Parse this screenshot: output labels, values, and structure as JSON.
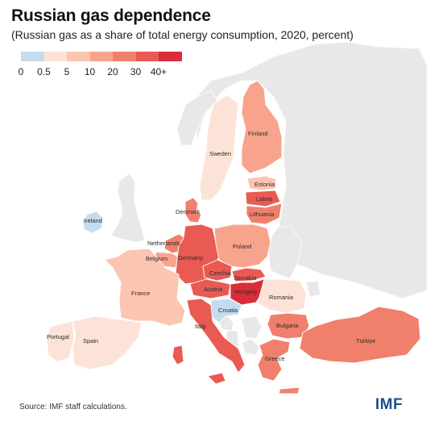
{
  "title": "Russian gas dependence",
  "subtitle": "(Russian gas as a share of total energy consumption, 2020, percent)",
  "legend": {
    "colors": [
      "#c6dcee",
      "#fde3d7",
      "#fcc5b1",
      "#f8a48d",
      "#f0806c",
      "#e85a52",
      "#d92e3a"
    ],
    "ticks": [
      "0",
      "0.5",
      "5",
      "10",
      "20",
      "30",
      "40+"
    ]
  },
  "countries": [
    {
      "name": "Finland",
      "color": "#f8a48d"
    },
    {
      "name": "Sweden",
      "color": "#fde3d7"
    },
    {
      "name": "Estonia",
      "color": "#fcc5b1"
    },
    {
      "name": "Latvia",
      "color": "#e85a52"
    },
    {
      "name": "Lithuania",
      "color": "#f0806c"
    },
    {
      "name": "Denmark",
      "color": "#f0806c"
    },
    {
      "name": "Ireland",
      "color": "#c6dcee"
    },
    {
      "name": "Netherlands",
      "color": "#f0806c"
    },
    {
      "name": "Belgium",
      "color": "#f8a48d"
    },
    {
      "name": "Germany",
      "color": "#e85a52"
    },
    {
      "name": "Poland",
      "color": "#f8a48d"
    },
    {
      "name": "Czechia",
      "color": "#e85a52"
    },
    {
      "name": "Slovakia",
      "color": "#e85a52"
    },
    {
      "name": "Austria",
      "color": "#e85a52"
    },
    {
      "name": "Hungary",
      "color": "#d92e3a"
    },
    {
      "name": "France",
      "color": "#fcc5b1"
    },
    {
      "name": "Romania",
      "color": "#fde3d7"
    },
    {
      "name": "Croatia",
      "color": "#c6dcee"
    },
    {
      "name": "Italy",
      "color": "#e85a52"
    },
    {
      "name": "Bulgaria",
      "color": "#f0806c"
    },
    {
      "name": "Portugal",
      "color": "#fde3d7"
    },
    {
      "name": "Spain",
      "color": "#fde3d7"
    },
    {
      "name": "Greece",
      "color": "#f0806c"
    },
    {
      "name": "Türkiye",
      "color": "#f0806c"
    }
  ],
  "source": "Source: IMF staff calculations.",
  "logo_text": "IMF"
}
